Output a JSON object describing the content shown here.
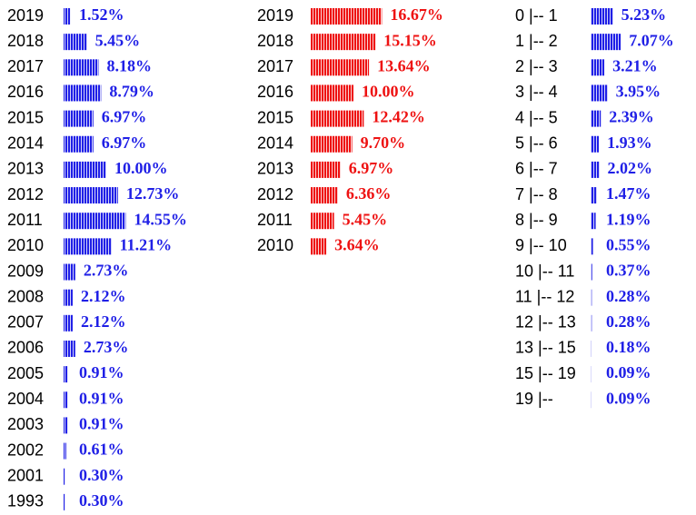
{
  "chart_data": [
    {
      "type": "bar",
      "orientation": "horizontal",
      "color": "#1f1fe6",
      "categories": [
        "2019",
        "2018",
        "2017",
        "2016",
        "2015",
        "2014",
        "2013",
        "2012",
        "2011",
        "2010",
        "2009",
        "2008",
        "2007",
        "2006",
        "2005",
        "2004",
        "2003",
        "2002",
        "2001",
        "1993"
      ],
      "values": [
        1.52,
        5.45,
        8.18,
        8.79,
        6.97,
        6.97,
        10.0,
        12.73,
        14.55,
        11.21,
        2.73,
        2.12,
        2.12,
        2.73,
        0.91,
        0.91,
        0.91,
        0.61,
        0.3,
        0.3
      ],
      "value_labels": [
        "1.52%",
        "5.45%",
        "8.18%",
        "8.79%",
        "6.97%",
        "6.97%",
        "10.00%",
        "12.73%",
        "14.55%",
        "11.21%",
        "2.73%",
        "2.12%",
        "2.12%",
        "2.73%",
        "0.91%",
        "0.91%",
        "0.91%",
        "0.61%",
        "0.30%",
        "0.30%"
      ]
    },
    {
      "type": "bar",
      "orientation": "horizontal",
      "color": "#ee1111",
      "categories": [
        "2019",
        "2018",
        "2017",
        "2016",
        "2015",
        "2014",
        "2013",
        "2012",
        "2011",
        "2010"
      ],
      "values": [
        16.67,
        15.15,
        13.64,
        10.0,
        12.42,
        9.7,
        6.97,
        6.36,
        5.45,
        3.64
      ],
      "value_labels": [
        "16.67%",
        "15.15%",
        "13.64%",
        "10.00%",
        "12.42%",
        "9.70%",
        "6.97%",
        "6.36%",
        "5.45%",
        "3.64%"
      ]
    },
    {
      "type": "bar",
      "orientation": "horizontal",
      "color": "#1f1fe6",
      "categories": [
        "0 |-- 1",
        "1 |-- 2",
        "2 |-- 3",
        "3 |-- 4",
        "4 |-- 5",
        "5 |-- 6",
        "6 |-- 7",
        "7 |-- 8",
        "8 |-- 9",
        "9 |-- 10",
        "10 |-- 11",
        "11 |-- 12",
        "12 |-- 13",
        "13 |-- 15",
        "15 |-- 19",
        "19 |--"
      ],
      "values": [
        5.23,
        7.07,
        3.21,
        3.95,
        2.39,
        1.93,
        2.02,
        1.47,
        1.19,
        0.55,
        0.37,
        0.28,
        0.28,
        0.18,
        0.09,
        0.09
      ],
      "value_labels": [
        "5.23%",
        "7.07%",
        "3.21%",
        "3.95%",
        "2.39%",
        "1.93%",
        "2.02%",
        "1.47%",
        "1.19%",
        "0.55%",
        "0.37%",
        "0.28%",
        "0.28%",
        "0.18%",
        "0.09%",
        "0.09%"
      ]
    }
  ]
}
